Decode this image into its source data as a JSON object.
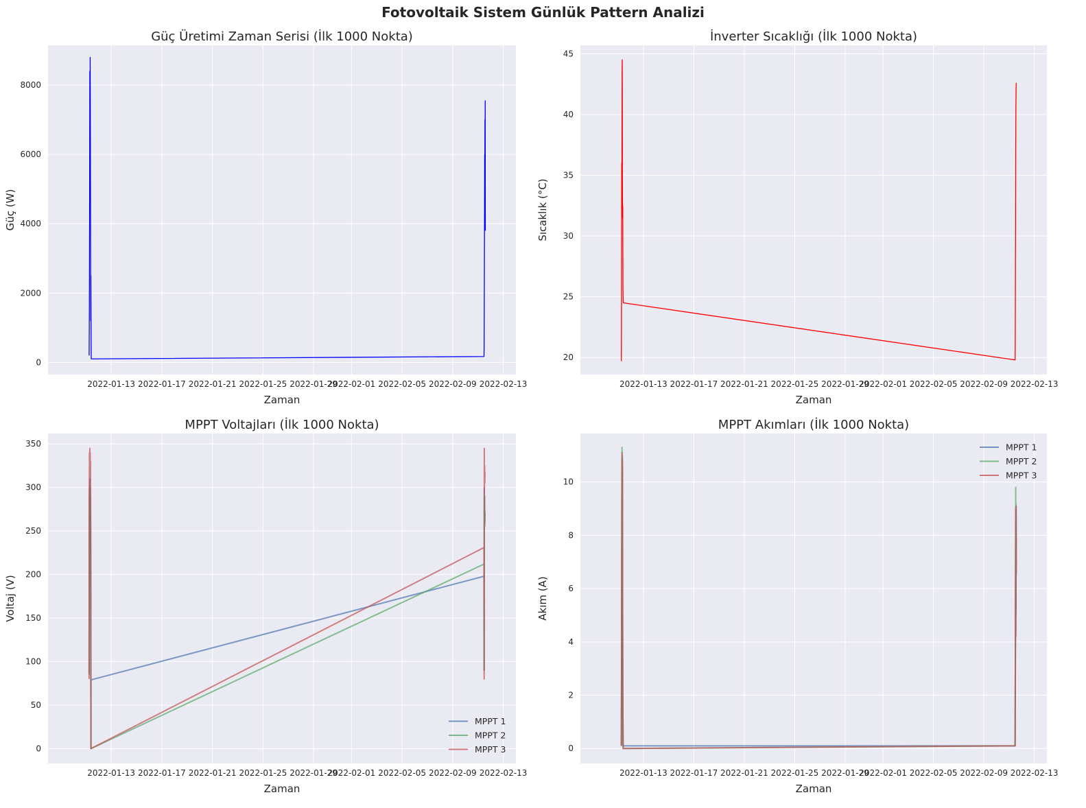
{
  "suptitle": "Fotovoltaik Sistem Günlük Pattern Analizi",
  "chart_data": [
    {
      "type": "line",
      "title": "Güç Üretimi Zaman Serisi (İlk 1000 Nokta)",
      "xlabel": "Zaman",
      "ylabel": "Güç (W)",
      "x_ticks": [
        "2022-01-13",
        "2022-01-17",
        "2022-01-21",
        "2022-01-25",
        "2022-01-29",
        "2022-02-01",
        "2022-02-05",
        "2022-02-09",
        "2022-02-13"
      ],
      "y_ticks": [
        0,
        2000,
        4000,
        6000,
        8000
      ],
      "xlim": [
        "2022-01-08",
        "2022-02-14"
      ],
      "ylim": [
        -350,
        9150
      ],
      "grid": true,
      "legend": null,
      "series": [
        {
          "color": "#0000ff",
          "points": [
            [
              "2022-01-11T06:00",
              200
            ],
            [
              "2022-01-11T06:20",
              1000
            ],
            [
              "2022-01-11T06:40",
              2800
            ],
            [
              "2022-01-11T07:00",
              5200
            ],
            [
              "2022-01-11T07:20",
              8400
            ],
            [
              "2022-01-11T07:40",
              6200
            ],
            [
              "2022-01-11T08:00",
              8800
            ],
            [
              "2022-01-11T08:20",
              7200
            ],
            [
              "2022-01-11T08:40",
              4500
            ],
            [
              "2022-01-11T09:00",
              1200
            ],
            [
              "2022-01-11T09:20",
              2500
            ],
            [
              "2022-01-11T09:40",
              1100
            ],
            [
              "2022-01-11T10:00",
              100
            ],
            [
              "2022-02-11T11:30",
              170
            ],
            [
              "2022-02-11T11:45",
              500
            ],
            [
              "2022-02-11T12:00",
              1800
            ],
            [
              "2022-02-11T12:15",
              3000
            ],
            [
              "2022-02-11T12:30",
              4500
            ],
            [
              "2022-02-11T12:45",
              6000
            ],
            [
              "2022-02-11T13:00",
              5000
            ],
            [
              "2022-02-11T13:15",
              7000
            ],
            [
              "2022-02-11T13:30",
              6200
            ],
            [
              "2022-02-11T13:45",
              7550
            ],
            [
              "2022-02-11T14:00",
              3800
            ]
          ]
        }
      ]
    },
    {
      "type": "line",
      "title": "İnverter Sıcaklığı (İlk 1000 Nokta)",
      "xlabel": "Zaman",
      "ylabel": "Sıcaklık (°C)",
      "x_ticks": [
        "2022-01-13",
        "2022-01-17",
        "2022-01-21",
        "2022-01-25",
        "2022-01-29",
        "2022-02-01",
        "2022-02-05",
        "2022-02-09",
        "2022-02-13"
      ],
      "y_ticks": [
        20,
        25,
        30,
        35,
        40,
        45
      ],
      "xlim": [
        "2022-01-08",
        "2022-02-14"
      ],
      "ylim": [
        18.6,
        45.7
      ],
      "grid": true,
      "legend": null,
      "series": [
        {
          "color": "#ff0000",
          "points": [
            [
              "2022-01-11T06:00",
              19.7
            ],
            [
              "2022-01-11T06:20",
              25.0
            ],
            [
              "2022-01-11T06:40",
              36.0
            ],
            [
              "2022-01-11T07:00",
              32.5
            ],
            [
              "2022-01-11T07:20",
              43.5
            ],
            [
              "2022-01-11T07:40",
              44.5
            ],
            [
              "2022-01-11T08:00",
              35.0
            ],
            [
              "2022-01-11T08:20",
              31.5
            ],
            [
              "2022-01-11T08:40",
              32.5
            ],
            [
              "2022-01-11T09:00",
              26.0
            ],
            [
              "2022-01-11T09:20",
              25.0
            ],
            [
              "2022-01-11T09:40",
              24.5
            ],
            [
              "2022-02-11T11:30",
              19.8
            ],
            [
              "2022-02-11T11:45",
              21.0
            ],
            [
              "2022-02-11T12:00",
              24.0
            ],
            [
              "2022-02-11T12:20",
              30.0
            ],
            [
              "2022-02-11T12:40",
              36.5
            ],
            [
              "2022-02-11T13:00",
              40.5
            ],
            [
              "2022-02-11T13:20",
              42.0
            ],
            [
              "2022-02-11T13:40",
              42.6
            ]
          ]
        }
      ]
    },
    {
      "type": "line",
      "title": "MPPT Voltajları (İlk 1000 Nokta)",
      "xlabel": "Zaman",
      "ylabel": "Voltaj (V)",
      "x_ticks": [
        "2022-01-13",
        "2022-01-17",
        "2022-01-21",
        "2022-01-25",
        "2022-01-29",
        "2022-02-01",
        "2022-02-05",
        "2022-02-09",
        "2022-02-13"
      ],
      "y_ticks": [
        0,
        50,
        100,
        150,
        200,
        250,
        300,
        350
      ],
      "xlim": [
        "2022-01-08",
        "2022-02-14"
      ],
      "ylim": [
        -17,
        362
      ],
      "grid": true,
      "legend": "lower right",
      "series": [
        {
          "name": "MPPT 1",
          "color": "#4c72b0",
          "points": [
            [
              "2022-01-11T06:00",
              85
            ],
            [
              "2022-01-11T06:20",
              280
            ],
            [
              "2022-01-11T06:40",
              300
            ],
            [
              "2022-01-11T07:00",
              260
            ],
            [
              "2022-01-11T07:20",
              310
            ],
            [
              "2022-01-11T07:40",
              270
            ],
            [
              "2022-01-11T08:00",
              300
            ],
            [
              "2022-01-11T08:20",
              260
            ],
            [
              "2022-01-11T08:40",
              290
            ],
            [
              "2022-01-11T09:00",
              250
            ],
            [
              "2022-01-11T09:20",
              170
            ],
            [
              "2022-01-11T09:30",
              0
            ],
            [
              "2022-01-11T09:40",
              79
            ],
            [
              "2022-02-11T11:30",
              198
            ],
            [
              "2022-02-11T11:45",
              90
            ],
            [
              "2022-02-11T12:00",
              300
            ],
            [
              "2022-02-11T12:20",
              270
            ],
            [
              "2022-02-11T12:40",
              290
            ],
            [
              "2022-02-11T13:00",
              260
            ],
            [
              "2022-02-11T13:20",
              270
            ]
          ]
        },
        {
          "name": "MPPT 2",
          "color": "#55a868",
          "points": [
            [
              "2022-01-11T06:00",
              85
            ],
            [
              "2022-01-11T06:20",
              270
            ],
            [
              "2022-01-11T06:40",
              290
            ],
            [
              "2022-01-11T07:00",
              255
            ],
            [
              "2022-01-11T07:20",
              300
            ],
            [
              "2022-01-11T07:40",
              260
            ],
            [
              "2022-01-11T08:00",
              290
            ],
            [
              "2022-01-11T08:20",
              240
            ],
            [
              "2022-01-11T08:40",
              280
            ],
            [
              "2022-01-11T09:00",
              170
            ],
            [
              "2022-01-11T09:30",
              0
            ],
            [
              "2022-02-11T11:30",
              212
            ],
            [
              "2022-02-11T11:45",
              90
            ],
            [
              "2022-02-11T12:00",
              290
            ],
            [
              "2022-02-11T12:20",
              260
            ],
            [
              "2022-02-11T12:40",
              275
            ],
            [
              "2022-02-11T13:00",
              255
            ],
            [
              "2022-02-11T13:20",
              272
            ]
          ]
        },
        {
          "name": "MPPT 3",
          "color": "#c44e52",
          "points": [
            [
              "2022-01-11T06:00",
              80
            ],
            [
              "2022-01-11T06:20",
              300
            ],
            [
              "2022-01-11T06:40",
              340
            ],
            [
              "2022-01-11T07:00",
              320
            ],
            [
              "2022-01-11T07:20",
              345
            ],
            [
              "2022-01-11T07:40",
              310
            ],
            [
              "2022-01-11T08:00",
              340
            ],
            [
              "2022-01-11T08:20",
              300
            ],
            [
              "2022-01-11T08:40",
              330
            ],
            [
              "2022-01-11T09:00",
              180
            ],
            [
              "2022-01-11T09:30",
              0
            ],
            [
              "2022-02-11T11:30",
              231
            ],
            [
              "2022-02-11T11:45",
              80
            ],
            [
              "2022-02-11T12:00",
              345
            ],
            [
              "2022-02-11T12:20",
              300
            ],
            [
              "2022-02-11T12:40",
              325
            ],
            [
              "2022-02-11T13:00",
              305
            ],
            [
              "2022-02-11T13:20",
              318
            ]
          ]
        }
      ]
    },
    {
      "type": "line",
      "title": "MPPT Akımları (İlk 1000 Nokta)",
      "xlabel": "Zaman",
      "ylabel": "Akım (A)",
      "x_ticks": [
        "2022-01-13",
        "2022-01-17",
        "2022-01-21",
        "2022-01-25",
        "2022-01-29",
        "2022-02-01",
        "2022-02-05",
        "2022-02-09",
        "2022-02-13"
      ],
      "y_ticks": [
        0,
        2,
        4,
        6,
        8,
        10
      ],
      "xlim": [
        "2022-01-08",
        "2022-02-14"
      ],
      "ylim": [
        -0.56,
        11.82
      ],
      "grid": true,
      "legend": "upper right",
      "series": [
        {
          "name": "MPPT 1",
          "color": "#4c72b0",
          "points": [
            [
              "2022-01-11T06:00",
              0.1
            ],
            [
              "2022-01-11T06:20",
              2.5
            ],
            [
              "2022-01-11T06:40",
              6.0
            ],
            [
              "2022-01-11T07:00",
              9.5
            ],
            [
              "2022-01-11T07:20",
              10.9
            ],
            [
              "2022-01-11T07:40",
              8.0
            ],
            [
              "2022-01-11T08:00",
              10.5
            ],
            [
              "2022-01-11T08:20",
              5.0
            ],
            [
              "2022-01-11T08:40",
              2.0
            ],
            [
              "2022-01-11T09:00",
              1.0
            ],
            [
              "2022-01-11T09:20",
              0.1
            ],
            [
              "2022-02-11T11:30",
              0.1
            ],
            [
              "2022-02-11T11:45",
              1.5
            ],
            [
              "2022-02-11T12:00",
              3.0
            ],
            [
              "2022-02-11T12:20",
              6.0
            ],
            [
              "2022-02-11T12:40",
              8.5
            ],
            [
              "2022-02-11T13:00",
              5.0
            ],
            [
              "2022-02-11T13:20",
              9.0
            ],
            [
              "2022-02-11T13:40",
              6.5
            ]
          ]
        },
        {
          "name": "MPPT 2",
          "color": "#55a868",
          "points": [
            [
              "2022-01-11T06:00",
              0.1
            ],
            [
              "2022-01-11T06:20",
              2.8
            ],
            [
              "2022-01-11T06:40",
              6.5
            ],
            [
              "2022-01-11T07:00",
              10.3
            ],
            [
              "2022-01-11T07:20",
              11.3
            ],
            [
              "2022-01-11T07:40",
              8.5
            ],
            [
              "2022-01-11T08:00",
              11.0
            ],
            [
              "2022-01-11T08:20",
              5.5
            ],
            [
              "2022-01-11T08:40",
              2.2
            ],
            [
              "2022-01-11T09:00",
              1.0
            ],
            [
              "2022-01-11T09:20",
              0.0
            ],
            [
              "2022-02-11T11:30",
              0.1
            ],
            [
              "2022-02-11T11:45",
              1.6
            ],
            [
              "2022-02-11T12:00",
              3.2
            ],
            [
              "2022-02-11T12:20",
              6.5
            ],
            [
              "2022-02-11T12:40",
              9.8
            ],
            [
              "2022-02-11T13:00",
              5.2
            ],
            [
              "2022-02-11T13:20",
              9.2
            ],
            [
              "2022-02-11T13:40",
              6.8
            ]
          ]
        },
        {
          "name": "MPPT 3",
          "color": "#c44e52",
          "points": [
            [
              "2022-01-11T06:00",
              0.1
            ],
            [
              "2022-01-11T06:20",
              2.6
            ],
            [
              "2022-01-11T06:40",
              6.2
            ],
            [
              "2022-01-11T07:00",
              9.8
            ],
            [
              "2022-01-11T07:20",
              11.1
            ],
            [
              "2022-01-11T07:40",
              8.2
            ],
            [
              "2022-01-11T08:00",
              10.8
            ],
            [
              "2022-01-11T08:20",
              5.2
            ],
            [
              "2022-01-11T08:40",
              2.1
            ],
            [
              "2022-01-11T09:00",
              1.0
            ],
            [
              "2022-01-11T09:20",
              0.0
            ],
            [
              "2022-02-11T11:30",
              0.1
            ],
            [
              "2022-02-11T11:45",
              1.5
            ],
            [
              "2022-02-11T12:00",
              3.1
            ],
            [
              "2022-02-11T12:20",
              6.2
            ],
            [
              "2022-02-11T12:40",
              9.0
            ],
            [
              "2022-02-11T13:00",
              4.2
            ],
            [
              "2022-02-11T13:20",
              9.1
            ],
            [
              "2022-02-11T13:40",
              6.6
            ]
          ]
        }
      ]
    }
  ]
}
